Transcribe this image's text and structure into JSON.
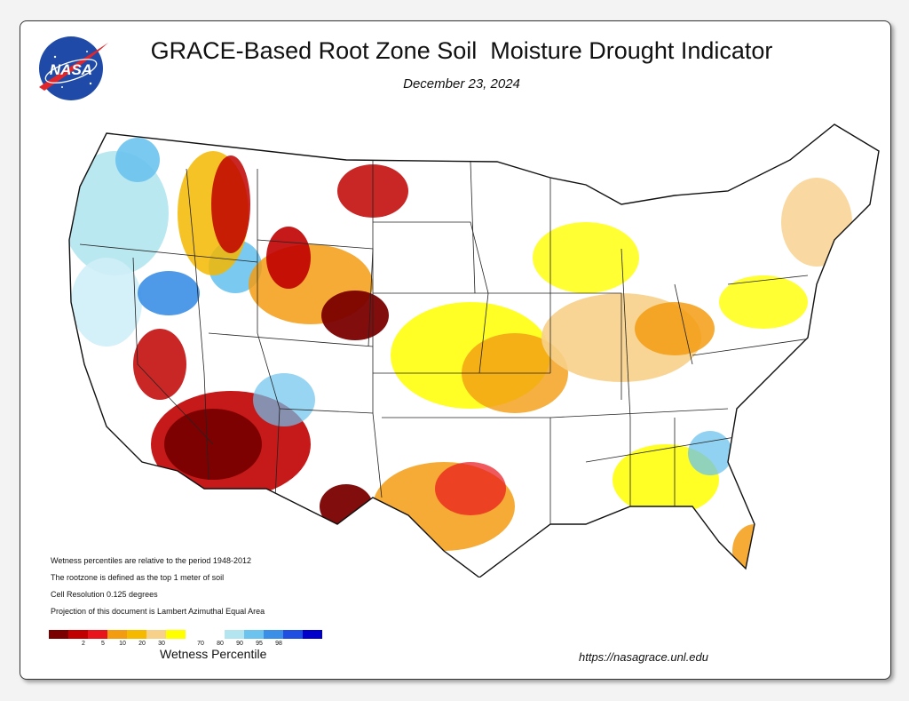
{
  "header": {
    "logo_text": "NASA",
    "title": "GRACE-Based Root Zone Soil  Moisture Drought Indicator",
    "date": "December 23, 2024"
  },
  "notes": [
    "Wetness percentiles are relative to the period 1948-2012",
    "The rootzone is defined as the top 1 meter of soil",
    "Cell Resolution 0.125 degrees",
    "Projection of this document is Lambert Azimuthal Equal Area"
  ],
  "legend": {
    "title": "Wetness Percentile",
    "ticks": [
      "2",
      "5",
      "10",
      "20",
      "30",
      "70",
      "80",
      "90",
      "95",
      "98"
    ],
    "colors": [
      "#7a0000",
      "#c00000",
      "#e8141b",
      "#f39c12",
      "#f5b900",
      "#f7d08a",
      "#ffff00",
      "#ffffff",
      "#ffffff",
      "#b3e5f0",
      "#6cc3ee",
      "#3b8fe6",
      "#1f4fe0",
      "#0000c8"
    ]
  },
  "footer": {
    "url": "https://nasagrace.unl.edu"
  }
}
